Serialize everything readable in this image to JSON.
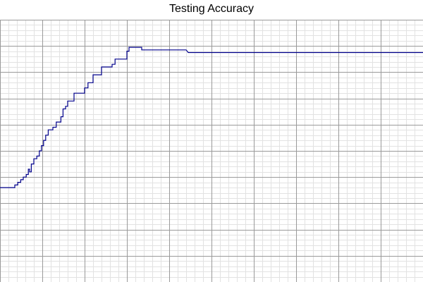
{
  "chart_data": {
    "type": "line",
    "title": "Testing Accuracy",
    "xlabel": "",
    "ylabel": "",
    "xlim": [
      0,
      100
    ],
    "ylim": [
      0,
      100
    ],
    "grid": true,
    "legend": "none",
    "series": [
      {
        "color": "#00008b",
        "steps": [
          [
            0,
            64
          ],
          [
            3.5,
            64
          ],
          [
            3.5,
            63
          ],
          [
            4.2,
            63
          ],
          [
            4.2,
            62
          ],
          [
            4.9,
            62
          ],
          [
            4.9,
            61
          ],
          [
            5.5,
            61
          ],
          [
            5.5,
            60
          ],
          [
            6.2,
            60
          ],
          [
            6.2,
            59
          ],
          [
            6.7,
            59
          ],
          [
            6.7,
            57
          ],
          [
            7.0,
            57
          ],
          [
            7.0,
            58
          ],
          [
            7.4,
            58
          ],
          [
            7.4,
            55
          ],
          [
            8.0,
            55
          ],
          [
            8.0,
            53
          ],
          [
            8.7,
            53
          ],
          [
            8.7,
            52
          ],
          [
            9.3,
            52
          ],
          [
            9.3,
            50
          ],
          [
            9.8,
            50
          ],
          [
            9.8,
            48
          ],
          [
            10.3,
            48
          ],
          [
            10.3,
            46
          ],
          [
            10.8,
            46
          ],
          [
            10.8,
            44
          ],
          [
            11.4,
            44
          ],
          [
            11.4,
            42
          ],
          [
            12.5,
            42
          ],
          [
            12.5,
            41
          ],
          [
            13.3,
            41
          ],
          [
            13.3,
            39
          ],
          [
            14.4,
            39
          ],
          [
            14.4,
            37
          ],
          [
            14.9,
            37
          ],
          [
            14.9,
            34
          ],
          [
            15.5,
            34
          ],
          [
            15.5,
            33
          ],
          [
            16.0,
            33
          ],
          [
            16.0,
            31
          ],
          [
            17.5,
            31
          ],
          [
            17.5,
            28
          ],
          [
            20.0,
            28
          ],
          [
            20.0,
            26
          ],
          [
            20.8,
            26
          ],
          [
            20.8,
            24
          ],
          [
            22.0,
            24
          ],
          [
            22.0,
            21
          ],
          [
            24.0,
            21
          ],
          [
            24.0,
            18
          ],
          [
            26.5,
            18
          ],
          [
            26.5,
            17
          ],
          [
            27.2,
            17
          ],
          [
            27.2,
            15
          ],
          [
            30.0,
            15
          ],
          [
            30.0,
            12
          ],
          [
            30.5,
            12
          ],
          [
            30.5,
            10.5
          ],
          [
            33.5,
            10.5
          ],
          [
            33.5,
            11.5
          ],
          [
            44.0,
            11.5
          ],
          [
            44.5,
            12.5
          ],
          [
            100,
            12.5
          ]
        ]
      }
    ]
  }
}
